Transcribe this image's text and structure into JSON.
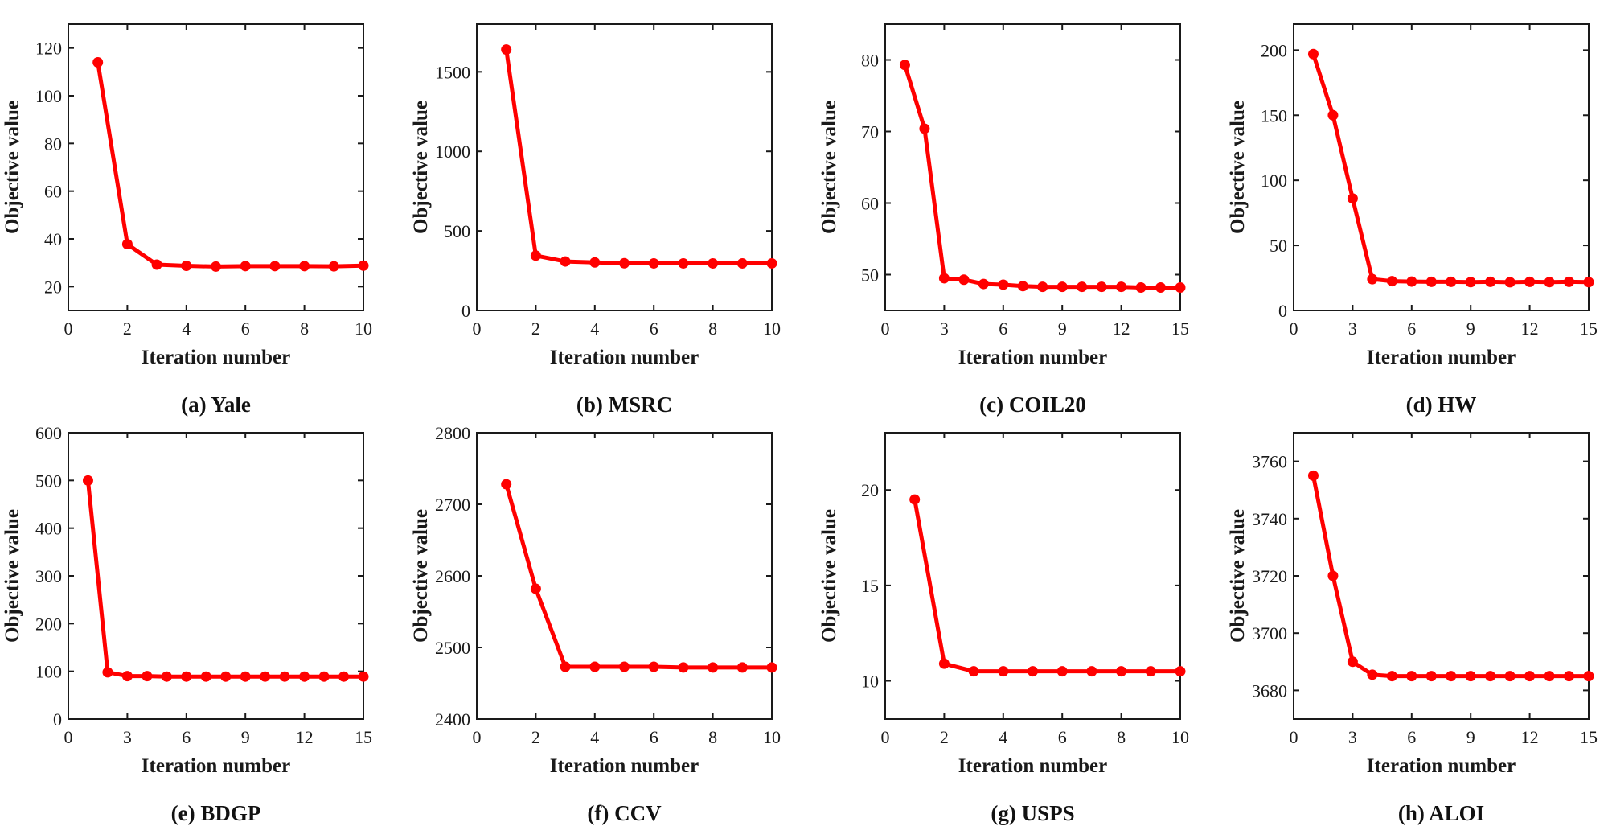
{
  "colors": {
    "line": "#ff0000",
    "axis": "#1a1a1a"
  },
  "chart_data": [
    {
      "type": "line",
      "caption": "(a) Yale",
      "xlabel": "Iteration number",
      "ylabel": "Objective value",
      "xlim": [
        0,
        10
      ],
      "ylim": [
        10,
        130
      ],
      "xticks": [
        0,
        2,
        4,
        6,
        8,
        10
      ],
      "yticks": [
        20,
        40,
        60,
        80,
        100,
        120
      ],
      "x": [
        1,
        2,
        3,
        4,
        5,
        6,
        7,
        8,
        9,
        10
      ],
      "y": [
        114,
        37.8,
        29.2,
        28.7,
        28.4,
        28.6,
        28.6,
        28.6,
        28.5,
        28.8
      ]
    },
    {
      "type": "line",
      "caption": "(b) MSRC",
      "xlabel": "Iteration number",
      "ylabel": "Objective value",
      "xlim": [
        0,
        10
      ],
      "ylim": [
        0,
        1800
      ],
      "xticks": [
        0,
        2,
        4,
        6,
        8,
        10
      ],
      "yticks": [
        0,
        500,
        1000,
        1500
      ],
      "x": [
        1,
        2,
        3,
        4,
        5,
        6,
        7,
        8,
        9,
        10
      ],
      "y": [
        1640,
        345,
        308,
        302,
        297,
        296,
        296,
        296,
        296,
        296
      ]
    },
    {
      "type": "line",
      "caption": "(c) COIL20",
      "xlabel": "Iteration number",
      "ylabel": "Objective value",
      "xlim": [
        0,
        15
      ],
      "ylim": [
        45,
        85
      ],
      "xticks": [
        0,
        3,
        6,
        9,
        12,
        15
      ],
      "yticks": [
        50,
        60,
        70,
        80
      ],
      "x": [
        1,
        2,
        3,
        4,
        5,
        6,
        7,
        8,
        9,
        10,
        11,
        12,
        13,
        14,
        15
      ],
      "y": [
        79.3,
        70.4,
        49.5,
        49.3,
        48.7,
        48.6,
        48.4,
        48.3,
        48.3,
        48.3,
        48.3,
        48.3,
        48.2,
        48.2,
        48.2
      ]
    },
    {
      "type": "line",
      "caption": "(d) HW",
      "xlabel": "Iteration number",
      "ylabel": "Objective value",
      "xlim": [
        0,
        15
      ],
      "ylim": [
        0,
        220
      ],
      "xticks": [
        0,
        3,
        6,
        9,
        12,
        15
      ],
      "yticks": [
        0,
        50,
        100,
        150,
        200
      ],
      "x": [
        1,
        2,
        3,
        4,
        5,
        6,
        7,
        8,
        9,
        10,
        11,
        12,
        13,
        14,
        15
      ],
      "y": [
        197,
        150,
        86,
        24,
        22.5,
        22.2,
        22,
        22,
        21.8,
        22,
        21.7,
        22,
        21.8,
        22,
        21.8
      ]
    },
    {
      "type": "line",
      "caption": "(e) BDGP",
      "xlabel": "Iteration number",
      "ylabel": "Objective value",
      "xlim": [
        0,
        15
      ],
      "ylim": [
        0,
        600
      ],
      "xticks": [
        0,
        3,
        6,
        9,
        12,
        15
      ],
      "yticks": [
        0,
        100,
        200,
        300,
        400,
        500,
        600
      ],
      "x": [
        1,
        2,
        3,
        4,
        5,
        6,
        7,
        8,
        9,
        10,
        11,
        12,
        13,
        14,
        15
      ],
      "y": [
        500,
        98,
        90,
        90,
        89,
        89,
        89,
        89,
        89,
        89,
        89,
        89,
        89,
        89,
        89
      ]
    },
    {
      "type": "line",
      "caption": "(f) CCV",
      "xlabel": "Iteration number",
      "ylabel": "Objective value",
      "xlim": [
        0,
        10
      ],
      "ylim": [
        2400,
        2800
      ],
      "xticks": [
        0,
        2,
        4,
        6,
        8,
        10
      ],
      "yticks": [
        2400,
        2500,
        2600,
        2700,
        2800
      ],
      "x": [
        1,
        2,
        3,
        4,
        5,
        6,
        7,
        8,
        9,
        10
      ],
      "y": [
        2728,
        2582,
        2473,
        2473,
        2473,
        2473,
        2472,
        2472,
        2472,
        2472
      ]
    },
    {
      "type": "line",
      "caption": "(g) USPS",
      "xlabel": "Iteration number",
      "ylabel": "Objective value",
      "xlim": [
        0,
        10
      ],
      "ylim": [
        8,
        23
      ],
      "xticks": [
        0,
        2,
        4,
        6,
        8,
        10
      ],
      "yticks": [
        10,
        15,
        20
      ],
      "x": [
        1,
        2,
        3,
        4,
        5,
        6,
        7,
        8,
        9,
        10
      ],
      "y": [
        19.5,
        10.9,
        10.5,
        10.5,
        10.5,
        10.5,
        10.5,
        10.5,
        10.5,
        10.5
      ]
    },
    {
      "type": "line",
      "caption": "(h) ALOI",
      "xlabel": "Iteration number",
      "ylabel": "Objective value",
      "xlim": [
        0,
        15
      ],
      "ylim": [
        3670,
        3770
      ],
      "xticks": [
        0,
        3,
        6,
        9,
        12,
        15
      ],
      "yticks": [
        3680,
        3700,
        3720,
        3740,
        3760
      ],
      "x": [
        1,
        2,
        3,
        4,
        5,
        6,
        7,
        8,
        9,
        10,
        11,
        12,
        13,
        14,
        15
      ],
      "y": [
        3755,
        3720,
        3690,
        3685.5,
        3685,
        3685,
        3685,
        3685,
        3685,
        3685,
        3685,
        3685,
        3685,
        3685,
        3685
      ]
    }
  ]
}
